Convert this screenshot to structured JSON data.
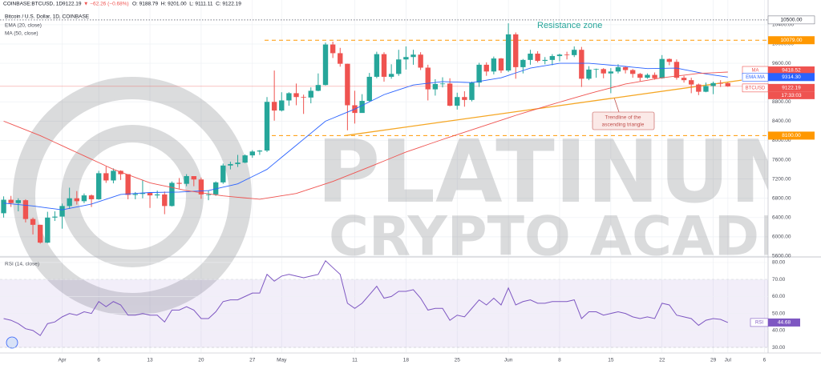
{
  "header": {
    "symbol": "COINBASE:BTCUSD, 1D",
    "price": "9122.19",
    "change": "▼ −62.26 (−0.68%)",
    "ohlc": "O: 9188.79  H: 9201.00  L: 9111.11  C: 9122.19"
  },
  "watermark": {
    "line1": "PLATINUM",
    "line2": "CRYPTO ACADEMY"
  },
  "chart_data": [
    {
      "type": "candlestick",
      "title": "Bitcoin / U.S. Dollar, 1D, COINBASE",
      "up_color": "#26a69a",
      "down_color": "#ef5350",
      "categories": [
        null,
        null,
        null,
        null,
        null,
        null,
        null,
        null,
        "Apr",
        null,
        null,
        null,
        null,
        "6",
        null,
        null,
        null,
        null,
        null,
        null,
        "13",
        null,
        null,
        null,
        null,
        null,
        null,
        "20",
        null,
        null,
        null,
        null,
        null,
        null,
        "27",
        null,
        null,
        null,
        "May",
        null,
        null,
        null,
        null,
        null,
        null,
        null,
        null,
        null,
        "11",
        null,
        null,
        null,
        null,
        null,
        null,
        "18",
        null,
        null,
        null,
        null,
        null,
        null,
        "25",
        null,
        null,
        null,
        null,
        null,
        null,
        "Jun",
        null,
        null,
        null,
        null,
        null,
        null,
        "8",
        null,
        null,
        null,
        null,
        null,
        null,
        "15",
        null,
        null,
        null,
        null,
        null,
        null,
        "22",
        null,
        null,
        null,
        null,
        null,
        null,
        "29",
        null,
        "Jul",
        null,
        null,
        null,
        null,
        "6"
      ],
      "open": [
        6490,
        6770,
        6700,
        6760,
        6370,
        6250,
        5880,
        6400,
        6420,
        6640,
        6800,
        6740,
        6860,
        6780,
        7320,
        7170,
        7370,
        7300,
        6870,
        6890,
        6910,
        6860,
        6880,
        6640,
        7120,
        7100,
        7260,
        7190,
        6880,
        6880,
        7130,
        7480,
        7510,
        7540,
        7690,
        7770,
        7790,
        8800,
        8620,
        8830,
        8980,
        8900,
        8890,
        9030,
        9150,
        9990,
        9810,
        9590,
        8730,
        8570,
        8820,
        9320,
        9790,
        9320,
        9380,
        9680,
        9730,
        9780,
        9510,
        9060,
        9170,
        9180,
        8720,
        8900,
        8840,
        9200,
        9570,
        9430,
        9700,
        9450,
        10200,
        9520,
        9670,
        9800,
        9650,
        9670,
        9750,
        9780,
        9770,
        9880,
        9280,
        9470,
        9480,
        9390,
        9430,
        9520,
        9460,
        9380,
        9300,
        9360,
        9290,
        9690,
        9630,
        9300,
        9250,
        9160,
        9010,
        9130,
        9190,
        9188.79,
        null,
        null,
        null,
        null,
        null
      ],
      "high": [
        6840,
        6850,
        6800,
        6780,
        6400,
        6250,
        6520,
        6530,
        6690,
        7020,
        6950,
        6900,
        6880,
        7370,
        7460,
        7420,
        7380,
        7300,
        6930,
        7170,
        6920,
        6960,
        6940,
        7150,
        7220,
        7300,
        7260,
        7230,
        6960,
        7150,
        7520,
        7560,
        7700,
        7710,
        7800,
        7800,
        8900,
        9450,
        9000,
        9000,
        9180,
        8950,
        9100,
        9390,
        10030,
        10050,
        9920,
        9590,
        9030,
        8960,
        9400,
        9840,
        9830,
        9580,
        9880,
        9950,
        9880,
        9830,
        9570,
        9270,
        9310,
        9290,
        8990,
        9020,
        9220,
        9610,
        9620,
        9740,
        9710,
        10430,
        10240,
        9690,
        9880,
        9850,
        9730,
        9790,
        9800,
        9840,
        9950,
        9940,
        9540,
        9490,
        9500,
        9500,
        9580,
        9540,
        9480,
        9400,
        9390,
        9410,
        9770,
        9700,
        9680,
        9340,
        9300,
        9180,
        9200,
        9220,
        9250,
        9201,
        null,
        null,
        null,
        null,
        null
      ],
      "low": [
        6400,
        6620,
        6530,
        6300,
        6050,
        5860,
        5870,
        6330,
        6170,
        6580,
        6670,
        6700,
        6620,
        6770,
        7120,
        7110,
        7180,
        6780,
        6780,
        6800,
        6600,
        6800,
        6470,
        6630,
        7000,
        7050,
        7050,
        6790,
        6760,
        6850,
        7100,
        7400,
        7450,
        7530,
        7640,
        7700,
        7760,
        8410,
        8600,
        8720,
        8730,
        8550,
        8770,
        9020,
        9140,
        9710,
        9530,
        8210,
        8350,
        8600,
        8800,
        9290,
        9220,
        9280,
        9340,
        9470,
        9570,
        9460,
        8830,
        8930,
        9100,
        8710,
        8640,
        8700,
        8810,
        9110,
        9340,
        9370,
        9400,
        9420,
        9280,
        9390,
        9570,
        9620,
        9580,
        9560,
        9640,
        9680,
        9730,
        9110,
        9250,
        9300,
        9290,
        8980,
        9390,
        9390,
        9300,
        9230,
        9280,
        9260,
        9280,
        9560,
        9260,
        9200,
        8980,
        8940,
        9000,
        8960,
        9110,
        9111.11,
        null,
        null,
        null,
        null,
        null
      ],
      "close": [
        6770,
        6700,
        6760,
        6370,
        6250,
        5880,
        6400,
        6420,
        6640,
        6800,
        6740,
        6860,
        6780,
        7320,
        7170,
        7370,
        7300,
        6870,
        6890,
        6910,
        6860,
        6880,
        6640,
        7120,
        7100,
        7260,
        7190,
        6880,
        6880,
        7130,
        7480,
        7510,
        7540,
        7690,
        7770,
        7790,
        8800,
        8620,
        8830,
        8980,
        8900,
        8890,
        9030,
        9150,
        9990,
        9810,
        9590,
        8730,
        8570,
        8820,
        9320,
        9790,
        9320,
        9380,
        9680,
        9730,
        9780,
        9510,
        9060,
        9170,
        9180,
        8720,
        8900,
        8840,
        9200,
        9570,
        9430,
        9700,
        9450,
        10200,
        9520,
        9670,
        9800,
        9650,
        9670,
        9750,
        9780,
        9770,
        9880,
        9280,
        9470,
        9480,
        9390,
        9430,
        9520,
        9460,
        9380,
        9300,
        9360,
        9290,
        9690,
        9630,
        9300,
        9250,
        9160,
        9010,
        9130,
        9190,
        9188.79,
        9122.19,
        null,
        null,
        null,
        null,
        null
      ],
      "series": [
        {
          "name": "EMA (20, close)",
          "color": "#2962ff",
          "values": [
            6700,
            6685,
            6670,
            6655,
            6640,
            6620,
            6600,
            6580,
            6560,
            6590,
            6620,
            6650,
            6680,
            6730,
            6780,
            6830,
            6880,
            6890,
            6900,
            6910,
            6920,
            6922,
            6925,
            6928,
            6930,
            6938,
            6945,
            6952,
            6960,
            6995,
            7030,
            7065,
            7100,
            7175,
            7250,
            7325,
            7400,
            7525,
            7650,
            7775,
            7900,
            8025,
            8150,
            8275,
            8400,
            8462,
            8525,
            8588,
            8650,
            8725,
            8800,
            8875,
            8950,
            9000,
            9050,
            9100,
            9150,
            9168,
            9185,
            9202,
            9220,
            9215,
            9210,
            9205,
            9200,
            9225,
            9250,
            9275,
            9300,
            9350,
            9400,
            9450,
            9500,
            9525,
            9550,
            9575,
            9600,
            9600,
            9600,
            9600,
            9600,
            9588,
            9575,
            9562,
            9550,
            9535,
            9520,
            9505,
            9490,
            9492,
            9495,
            9498,
            9500,
            9470,
            9440,
            9410,
            9380,
            9358,
            9336,
            9314.3,
            null,
            null,
            null,
            null,
            null
          ]
        },
        {
          "name": "MA (50, close)",
          "color": "#ef5350",
          "values": [
            8400,
            8340,
            8280,
            8220,
            8160,
            8100,
            8030,
            7960,
            7890,
            7820,
            7750,
            7680,
            7610,
            7540,
            7470,
            7400,
            7344,
            7288,
            7232,
            7176,
            7120,
            7088,
            7056,
            7024,
            6992,
            6960,
            6938,
            6916,
            6894,
            6872,
            6850,
            6836,
            6822,
            6808,
            6794,
            6780,
            6804,
            6828,
            6852,
            6876,
            6900,
            6950,
            7000,
            7050,
            7100,
            7150,
            7210,
            7270,
            7330,
            7390,
            7450,
            7512,
            7574,
            7636,
            7698,
            7760,
            7812,
            7864,
            7916,
            7968,
            8020,
            8070,
            8120,
            8170,
            8220,
            8270,
            8320,
            8370,
            8420,
            8470,
            8520,
            8566,
            8612,
            8658,
            8704,
            8750,
            8794,
            8838,
            8882,
            8926,
            8970,
            9010,
            9050,
            9090,
            9130,
            9170,
            9196,
            9222,
            9248,
            9274,
            9300,
            9318,
            9336,
            9354,
            9372,
            9390,
            9397,
            9404,
            9411,
            9418.52,
            null,
            null,
            null,
            null,
            null
          ]
        }
      ],
      "ylim": [
        5600,
        10830
      ],
      "yticks": [
        {
          "value": 5600,
          "label": "5600.00"
        },
        {
          "value": 6000,
          "label": "6000.00"
        },
        {
          "value": 6400,
          "label": "6400.00"
        },
        {
          "value": 6800,
          "label": "6800.00"
        },
        {
          "value": 7200,
          "label": "7200.00"
        },
        {
          "value": 7600,
          "label": "7600.00"
        },
        {
          "value": 8000,
          "label": "8000.00"
        },
        {
          "value": 8400,
          "label": "8400.00"
        },
        {
          "value": 8800,
          "label": "8800.00"
        },
        {
          "value": 9600,
          "label": "9600.00"
        },
        {
          "value": 10000,
          "label": "10000.00"
        },
        {
          "value": 10400,
          "label": "10400.00"
        }
      ],
      "grid": true,
      "levels": [
        {
          "value": 10500,
          "label": "10500.00",
          "color": "#787b86",
          "style": "dotted"
        },
        {
          "value": 10079,
          "label": "10079.00",
          "color": "#ff9800",
          "style": "dashed"
        },
        {
          "value": 8100,
          "label": "8100.00",
          "color": "#ff9800",
          "style": "dashed"
        }
      ],
      "badges": [
        {
          "name": "MA",
          "value": 9418.52,
          "label": "9418.52",
          "color": "#ef5350"
        },
        {
          "name": "EMA:MA",
          "value": 9314.3,
          "label": "9314.30",
          "color": "#2962ff"
        },
        {
          "name": "BTCUSD",
          "value": 9122.19,
          "label": "9122.19",
          "color": "#ef5350"
        }
      ],
      "countdown": "17:33:03",
      "resistance_label": "Resistance zone",
      "trendline": {
        "values": [
          8100,
          9250
        ],
        "color": "#f5a623",
        "lines": [
          "Trendline of the",
          "ascending triangle"
        ]
      }
    },
    {
      "type": "line",
      "title": "RSI (14, close)",
      "color": "#7e57c2",
      "values": [
        47,
        46,
        44,
        41,
        40,
        37,
        44,
        45,
        48,
        50,
        49,
        51,
        50,
        57,
        54,
        57,
        55,
        49,
        49,
        50,
        49,
        49,
        45,
        52,
        52,
        54,
        52,
        47,
        47,
        51,
        57,
        58,
        58,
        60,
        62,
        62,
        73,
        69,
        72,
        73,
        72,
        71,
        72,
        73,
        81,
        77,
        73,
        56,
        53,
        56,
        61,
        66,
        59,
        60,
        63,
        63,
        64,
        59,
        52,
        53,
        53,
        46,
        49,
        48,
        53,
        58,
        55,
        59,
        55,
        65,
        55,
        57,
        58,
        56,
        56,
        57,
        57,
        57,
        58,
        47,
        51,
        51,
        49,
        50,
        51,
        50,
        48,
        47,
        48,
        47,
        56,
        55,
        49,
        48,
        47,
        43,
        46,
        47,
        46.5,
        44.68,
        null,
        null,
        null,
        null,
        null
      ],
      "ylim": [
        27.2,
        82.8
      ],
      "yticks": [
        {
          "value": 30,
          "label": "30.00"
        },
        {
          "value": 40,
          "label": "40.00"
        },
        {
          "value": 50,
          "label": "50.00"
        },
        {
          "value": 60,
          "label": "60.00"
        },
        {
          "value": 70,
          "label": "70.00"
        },
        {
          "value": 80,
          "label": "80.00"
        }
      ],
      "band": [
        30,
        70
      ],
      "badge": {
        "name": "RSI",
        "value": 44.68,
        "label": "44.68"
      }
    }
  ]
}
